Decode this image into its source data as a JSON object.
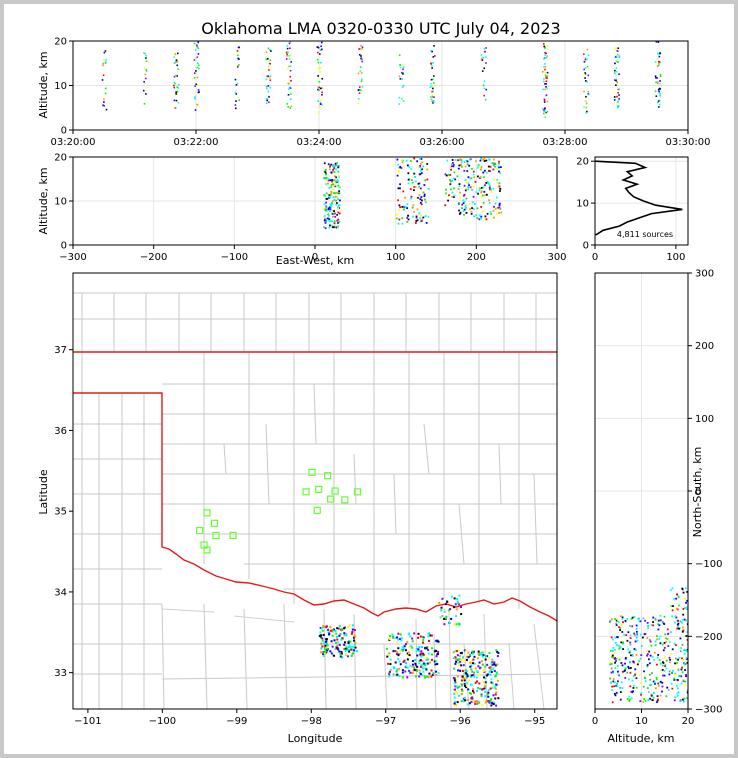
{
  "title": "Oklahoma LMA 0320-0330 UTC July 04, 2023",
  "chart_data": [
    {
      "id": "time_height",
      "type": "scatter",
      "xlabel": "",
      "ylabel": "Altitude, km",
      "xlim": [
        "03:20:00",
        "03:30:00"
      ],
      "ylim": [
        0,
        20
      ],
      "xticks": [
        "03:20:00",
        "03:22:00",
        "03:24:00",
        "03:26:00",
        "03:28:00",
        "03:30:00"
      ],
      "yticks": [
        0,
        10,
        20
      ],
      "columns": [
        {
          "t": "03:20:30",
          "alt": [
            2,
            18
          ],
          "n": 18
        },
        {
          "t": "03:21:10",
          "alt": [
            6,
            18
          ],
          "n": 16
        },
        {
          "t": "03:21:40",
          "alt": [
            5,
            20
          ],
          "n": 34
        },
        {
          "t": "03:22:00",
          "alt": [
            4,
            20
          ],
          "n": 30
        },
        {
          "t": "03:22:40",
          "alt": [
            5,
            19
          ],
          "n": 20
        },
        {
          "t": "03:23:10",
          "alt": [
            6,
            19
          ],
          "n": 30
        },
        {
          "t": "03:23:30",
          "alt": [
            5,
            20
          ],
          "n": 38
        },
        {
          "t": "03:24:00",
          "alt": [
            4,
            20
          ],
          "n": 34
        },
        {
          "t": "03:24:40",
          "alt": [
            6,
            20
          ],
          "n": 26
        },
        {
          "t": "03:25:20",
          "alt": [
            6,
            18
          ],
          "n": 20
        },
        {
          "t": "03:25:50",
          "alt": [
            6,
            20
          ],
          "n": 30
        },
        {
          "t": "03:26:40",
          "alt": [
            6,
            19
          ],
          "n": 18
        },
        {
          "t": "03:27:40",
          "alt": [
            3,
            20
          ],
          "n": 55
        },
        {
          "t": "03:28:20",
          "alt": [
            4,
            19
          ],
          "n": 30
        },
        {
          "t": "03:28:50",
          "alt": [
            5,
            19
          ],
          "n": 44
        },
        {
          "t": "03:29:30",
          "alt": [
            5,
            20
          ],
          "n": 40
        }
      ]
    },
    {
      "id": "ew_altitude",
      "type": "scatter",
      "xlabel": "East-West, km",
      "ylabel": "Altitude, km",
      "xlim": [
        -300,
        300
      ],
      "ylim": [
        0,
        20
      ],
      "xticks": [
        -300,
        -200,
        -100,
        0,
        100,
        200,
        300
      ],
      "yticks": [
        0,
        10,
        20
      ],
      "clusters": [
        {
          "x": [
            10,
            30
          ],
          "alt": [
            4,
            19
          ],
          "n": 170
        },
        {
          "x": [
            100,
            140
          ],
          "alt": [
            5,
            20
          ],
          "n": 120
        },
        {
          "x": [
            160,
            230
          ],
          "alt": [
            6,
            20
          ],
          "n": 220
        }
      ]
    },
    {
      "id": "altitude_histogram",
      "type": "line",
      "xlim": [
        0,
        115
      ],
      "ylim": [
        0,
        21
      ],
      "xticks": [
        0,
        100
      ],
      "yticks": [
        0,
        10,
        20
      ],
      "annotation": "4,811 sources",
      "profile": [
        {
          "alt": 2.5,
          "count": 2
        },
        {
          "alt": 3.5,
          "count": 10
        },
        {
          "alt": 4.5,
          "count": 30
        },
        {
          "alt": 5.5,
          "count": 40
        },
        {
          "alt": 6.5,
          "count": 55
        },
        {
          "alt": 7.5,
          "count": 70
        },
        {
          "alt": 8.5,
          "count": 108
        },
        {
          "alt": 9.5,
          "count": 75
        },
        {
          "alt": 10.5,
          "count": 60
        },
        {
          "alt": 11.5,
          "count": 48
        },
        {
          "alt": 12.5,
          "count": 42
        },
        {
          "alt": 13.5,
          "count": 38
        },
        {
          "alt": 14.5,
          "count": 52
        },
        {
          "alt": 15.5,
          "count": 35
        },
        {
          "alt": 16.5,
          "count": 46
        },
        {
          "alt": 17.5,
          "count": 40
        },
        {
          "alt": 18.5,
          "count": 62
        },
        {
          "alt": 19.5,
          "count": 50
        },
        {
          "alt": 20.0,
          "count": 0
        }
      ]
    },
    {
      "id": "plan_view",
      "type": "scatter",
      "xlabel": "Longitude",
      "ylabel": "Latitude",
      "xlim": [
        -101.2,
        -94.7
      ],
      "ylim": [
        32.55,
        37.95
      ],
      "xticks": [
        -101,
        -100,
        -99,
        -98,
        -97,
        -96,
        -95
      ],
      "yticks": [
        33,
        34,
        35,
        36,
        37
      ],
      "stations": [
        {
          "lon": -99.4,
          "lat": 34.98
        },
        {
          "lon": -99.3,
          "lat": 34.85
        },
        {
          "lon": -99.5,
          "lat": 34.76
        },
        {
          "lon": -99.28,
          "lat": 34.7
        },
        {
          "lon": -99.44,
          "lat": 34.58
        },
        {
          "lon": -99.4,
          "lat": 34.52
        },
        {
          "lon": -99.05,
          "lat": 34.7
        },
        {
          "lon": -97.99,
          "lat": 35.48
        },
        {
          "lon": -97.78,
          "lat": 35.44
        },
        {
          "lon": -98.07,
          "lat": 35.24
        },
        {
          "lon": -97.9,
          "lat": 35.27
        },
        {
          "lon": -97.68,
          "lat": 35.25
        },
        {
          "lon": -97.74,
          "lat": 35.15
        },
        {
          "lon": -97.55,
          "lat": 35.14
        },
        {
          "lon": -97.38,
          "lat": 35.24
        },
        {
          "lon": -97.92,
          "lat": 35.01
        }
      ],
      "clusters": [
        {
          "lon": [
            -97.9,
            -97.4
          ],
          "lat": [
            33.2,
            33.6
          ],
          "n": 150
        },
        {
          "lon": [
            -97.0,
            -96.3
          ],
          "lat": [
            32.95,
            33.5
          ],
          "n": 200
        },
        {
          "lon": [
            -96.3,
            -96.0
          ],
          "lat": [
            33.6,
            34.0
          ],
          "n": 40
        },
        {
          "lon": [
            -96.1,
            -95.5
          ],
          "lat": [
            32.6,
            33.3
          ],
          "n": 260
        }
      ]
    },
    {
      "id": "altitude_ns",
      "type": "scatter",
      "xlabel": "Altitude, km",
      "ylabel": "North-South, km",
      "xlim": [
        0,
        20
      ],
      "ylim": [
        -300,
        300
      ],
      "xticks": [
        0,
        10,
        20
      ],
      "yticks": [
        -300,
        -200,
        -100,
        0,
        100,
        200,
        300
      ],
      "clusters": [
        {
          "alt": [
            3,
            20
          ],
          "ns": [
            -290,
            -170
          ],
          "n": 400
        },
        {
          "alt": [
            16,
            20
          ],
          "ns": [
            -190,
            -130
          ],
          "n": 40
        }
      ]
    }
  ]
}
